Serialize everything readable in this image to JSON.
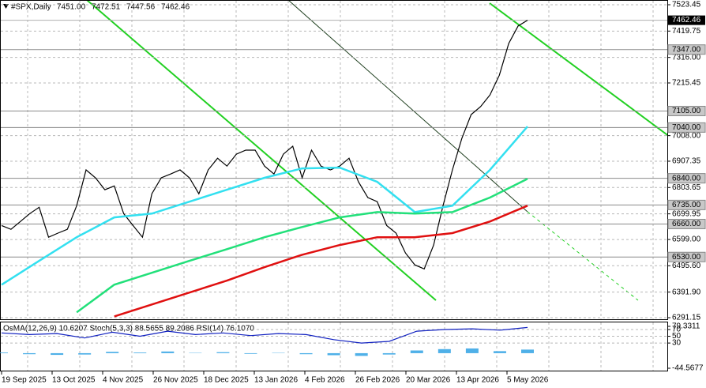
{
  "chart_data": [
    {
      "type": "line",
      "symbol": "#SPX,Daily",
      "ohlc": [
        "7451.00",
        "7472.51",
        "7447.56",
        "7462.46"
      ],
      "ylim": [
        6291.15,
        7523.45
      ],
      "yticks": [
        7523.45,
        7419.75,
        {
          "value": 7316,
          "label": "7316.00"
        },
        7215.45,
        {
          "value": 7008,
          "label": "7008.00"
        },
        6907.35,
        6803.65,
        6699.95,
        {
          "value": 6599,
          "label": "6599.00"
        },
        {
          "value": 6495.6,
          "label": "6495.60"
        },
        {
          "value": 6391.9,
          "label": "6391.90"
        },
        6291.15
      ],
      "levels": [
        {
          "value": 7347,
          "label": "7347.00"
        },
        {
          "value": 7105,
          "label": "7105.00"
        },
        {
          "value": 7040,
          "label": "7040.00"
        },
        {
          "value": 6840,
          "label": "6840.00"
        },
        {
          "value": 6735,
          "label": "6735.00"
        },
        {
          "value": 6660,
          "label": "6660.00"
        },
        {
          "value": 6530,
          "label": "6530.00"
        }
      ],
      "last_price": 7462.46,
      "date_labels": [
        "19 Sep 2025",
        "13 Oct 2025",
        "4 Nov 2025",
        "26 Nov 2025",
        "18 Dec 2025",
        "13 Jan 2026",
        "4 Feb 2026",
        "26 Feb 2026",
        "20 Mar 2026",
        "13 Apr 2026",
        "5 May 2026"
      ],
      "grid": true,
      "series": [
        {
          "color": "#000000",
          "values": [
            6654,
            6639,
            6670,
            6701,
            6726,
            6608,
            6624,
            6639,
            6732,
            6873,
            6842,
            6795,
            6810,
            6701,
            6654,
            6608,
            6779,
            6842,
            6857,
            6873,
            6842,
            6779,
            6873,
            6919,
            6888,
            6935,
            6951,
            6951,
            6888,
            6857,
            6935,
            6966,
            6842,
            6951,
            6888,
            6873,
            6888,
            6919,
            6826,
            6764,
            6748,
            6654,
            6624,
            6546,
            6499,
            6483,
            6577,
            6732,
            6873,
            6997,
            7091,
            7122,
            7168,
            7246,
            7371,
            7440,
            7462.46
          ]
        },
        {
          "color": "#33e0f0",
          "values": [
            6421,
            6515,
            6608,
            6686,
            6701,
            6748,
            6795,
            6842,
            6879,
            6882,
            6826,
            6707,
            6732,
            6873,
            7044
          ]
        },
        {
          "color": "#22e07a",
          "values": [
            null,
            null,
            6312,
            6421,
            6468,
            6515,
            6561,
            6608,
            6648,
            6686,
            6707,
            6701,
            6707,
            6764,
            6838
          ]
        },
        {
          "color": "#e01010",
          "values": [
            null,
            null,
            null,
            6296,
            6343,
            6390,
            6437,
            6490,
            6539,
            6577,
            6608,
            6608,
            6624,
            6670,
            6732
          ]
        }
      ]
    },
    {
      "type": "line",
      "title": "OsMA(12,26,9) 10.6207 Stoch(5,3,3) 88.5655 89.2086 RSI(14) 76.1070",
      "ylim": [
        -44.5677,
        79.3311
      ],
      "yticks": [
        79.3311,
        70,
        50,
        30,
        -44.5677
      ],
      "series": [
        {
          "type": "bar",
          "color": "#4fb0e8",
          "values": [
            2,
            -3,
            -5,
            -4,
            4,
            2,
            5,
            1,
            3,
            -2,
            1,
            -3,
            -6,
            -8,
            -4,
            8,
            12,
            14,
            6,
            10.6207
          ]
        },
        {
          "type": "line",
          "color": "#1020c0",
          "values": [
            60,
            55,
            58,
            45,
            62,
            50,
            65,
            55,
            60,
            52,
            58,
            55,
            40,
            30,
            35,
            65,
            70,
            72,
            68,
            76.107
          ]
        }
      ]
    }
  ]
}
